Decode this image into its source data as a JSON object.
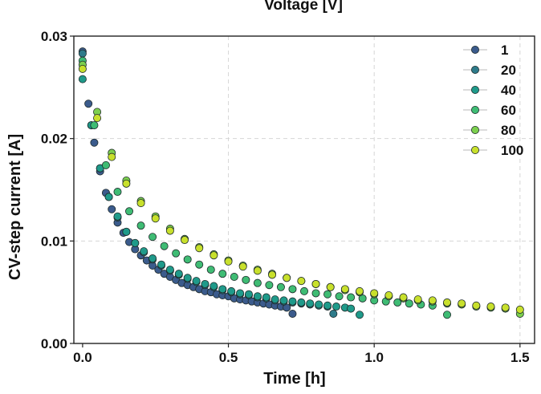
{
  "chart_data": {
    "type": "scatter",
    "title": "Voltage [V]",
    "xlabel": "Time [h]",
    "ylabel": "CV-step current [A]",
    "xlim": [
      -0.03,
      1.55
    ],
    "ylim": [
      0.0,
      0.03
    ],
    "xticks": [
      0.0,
      0.5,
      1.0,
      1.5
    ],
    "xtick_labels": [
      "0.0",
      "0.5",
      "1.0",
      "1.5"
    ],
    "yticks": [
      0.0,
      0.01,
      0.02,
      0.03
    ],
    "ytick_labels": [
      "0.00",
      "0.01",
      "0.02",
      "0.03"
    ],
    "grid": true,
    "legend_position": "top-right",
    "series": [
      {
        "name": "1",
        "color": "#3b5b8c",
        "x": [
          0.0,
          0.02,
          0.04,
          0.06,
          0.08,
          0.1,
          0.12,
          0.14,
          0.16,
          0.18,
          0.2,
          0.22,
          0.24,
          0.26,
          0.28,
          0.3,
          0.32,
          0.34,
          0.36,
          0.38,
          0.4,
          0.42,
          0.44,
          0.46,
          0.48,
          0.5,
          0.52,
          0.54,
          0.56,
          0.58,
          0.6,
          0.62,
          0.64,
          0.66,
          0.68,
          0.7,
          0.72
        ],
        "y": [
          0.0285,
          0.0234,
          0.0196,
          0.0168,
          0.0147,
          0.0131,
          0.0118,
          0.0108,
          0.0099,
          0.0092,
          0.0086,
          0.0081,
          0.0076,
          0.0072,
          0.0068,
          0.0065,
          0.0062,
          0.0059,
          0.0057,
          0.0055,
          0.0053,
          0.0051,
          0.005,
          0.0048,
          0.0047,
          0.0046,
          0.0044,
          0.0043,
          0.0042,
          0.0041,
          0.004,
          0.0039,
          0.0038,
          0.0037,
          0.0036,
          0.0035,
          0.0029
        ]
      },
      {
        "name": "20",
        "color": "#2e7b8a",
        "x": [
          0.0,
          0.03,
          0.06,
          0.09,
          0.12,
          0.15,
          0.18,
          0.21,
          0.24,
          0.27,
          0.3,
          0.33,
          0.36,
          0.39,
          0.42,
          0.45,
          0.48,
          0.51,
          0.54,
          0.57,
          0.6,
          0.63,
          0.66,
          0.69,
          0.72,
          0.75,
          0.78,
          0.81,
          0.84,
          0.86
        ],
        "y": [
          0.0283,
          0.0213,
          0.0171,
          0.0143,
          0.0123,
          0.0109,
          0.0098,
          0.0089,
          0.0082,
          0.0076,
          0.0071,
          0.0067,
          0.0063,
          0.006,
          0.0057,
          0.0055,
          0.0052,
          0.005,
          0.0048,
          0.0047,
          0.0045,
          0.0044,
          0.0042,
          0.0041,
          0.004,
          0.0039,
          0.0038,
          0.0037,
          0.0036,
          0.0029
        ]
      },
      {
        "name": "40",
        "color": "#1f9a8a",
        "x": [
          0.0,
          0.03,
          0.06,
          0.09,
          0.12,
          0.15,
          0.18,
          0.21,
          0.24,
          0.27,
          0.3,
          0.33,
          0.36,
          0.39,
          0.42,
          0.45,
          0.48,
          0.51,
          0.54,
          0.57,
          0.6,
          0.63,
          0.66,
          0.69,
          0.72,
          0.75,
          0.78,
          0.81,
          0.84,
          0.87,
          0.9,
          0.92,
          0.95
        ],
        "y": [
          0.0258,
          0.0213,
          0.0171,
          0.0143,
          0.0124,
          0.0109,
          0.0098,
          0.009,
          0.0083,
          0.0077,
          0.0072,
          0.0068,
          0.0064,
          0.0061,
          0.0058,
          0.0056,
          0.0053,
          0.0051,
          0.0049,
          0.0048,
          0.0046,
          0.0045,
          0.0043,
          0.0042,
          0.0041,
          0.004,
          0.0039,
          0.0038,
          0.0037,
          0.0036,
          0.0035,
          0.0034,
          0.0028
        ]
      },
      {
        "name": "60",
        "color": "#3fbc74",
        "x": [
          0.0,
          0.04,
          0.08,
          0.12,
          0.16,
          0.2,
          0.24,
          0.28,
          0.32,
          0.36,
          0.4,
          0.44,
          0.48,
          0.52,
          0.56,
          0.6,
          0.64,
          0.68,
          0.72,
          0.76,
          0.8,
          0.84,
          0.88,
          0.92,
          0.96,
          1.0,
          1.04,
          1.08,
          1.12,
          1.16,
          1.2,
          1.25
        ],
        "y": [
          0.0276,
          0.0213,
          0.0174,
          0.0148,
          0.0129,
          0.0115,
          0.0104,
          0.0095,
          0.0088,
          0.0082,
          0.0077,
          0.0072,
          0.0068,
          0.0065,
          0.0062,
          0.0059,
          0.0057,
          0.0055,
          0.0053,
          0.0051,
          0.0049,
          0.0048,
          0.0046,
          0.0045,
          0.0044,
          0.0042,
          0.0041,
          0.004,
          0.0039,
          0.0038,
          0.0037,
          0.0028
        ]
      },
      {
        "name": "80",
        "color": "#7ccf4e",
        "x": [
          0.0,
          0.05,
          0.1,
          0.15,
          0.2,
          0.25,
          0.3,
          0.35,
          0.4,
          0.45,
          0.5,
          0.55,
          0.6,
          0.65,
          0.7,
          0.75,
          0.8,
          0.85,
          0.9,
          0.95,
          1.0,
          1.05,
          1.1,
          1.15,
          1.2,
          1.25,
          1.3,
          1.35,
          1.4,
          1.45,
          1.5
        ],
        "y": [
          0.0272,
          0.0226,
          0.0186,
          0.0159,
          0.0139,
          0.0124,
          0.0112,
          0.0102,
          0.0094,
          0.0087,
          0.0081,
          0.0076,
          0.0072,
          0.0068,
          0.0064,
          0.0061,
          0.0058,
          0.0055,
          0.0052,
          0.005,
          0.0048,
          0.0046,
          0.0044,
          0.0042,
          0.0041,
          0.0039,
          0.0038,
          0.0036,
          0.0035,
          0.0034,
          0.0029
        ]
      },
      {
        "name": "100",
        "color": "#c8e02c",
        "x": [
          0.0,
          0.05,
          0.1,
          0.15,
          0.2,
          0.25,
          0.3,
          0.35,
          0.4,
          0.45,
          0.5,
          0.55,
          0.6,
          0.65,
          0.7,
          0.75,
          0.8,
          0.85,
          0.9,
          0.95,
          1.0,
          1.05,
          1.1,
          1.15,
          1.2,
          1.25,
          1.3,
          1.35,
          1.4,
          1.45,
          1.5
        ],
        "y": [
          0.0268,
          0.022,
          0.0182,
          0.0156,
          0.0137,
          0.0122,
          0.011,
          0.0101,
          0.0093,
          0.0086,
          0.008,
          0.0075,
          0.0071,
          0.0067,
          0.0064,
          0.0061,
          0.0058,
          0.0055,
          0.0053,
          0.0051,
          0.0049,
          0.0047,
          0.0045,
          0.0043,
          0.0042,
          0.004,
          0.0039,
          0.0037,
          0.0036,
          0.0035,
          0.0033
        ]
      }
    ]
  }
}
